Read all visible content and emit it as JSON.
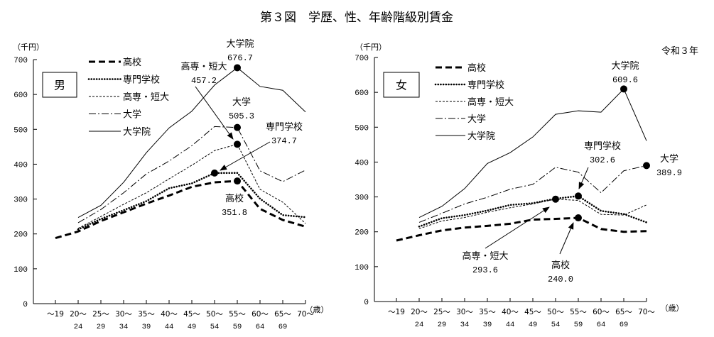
{
  "title": "第３図　学歴、性、年齢階級別賃金",
  "note": "令和３年",
  "chart_data": [
    {
      "type": "line",
      "panel": "男",
      "ylabel": "（千円）",
      "xlabel": "（歳）",
      "ylim": [
        0,
        700
      ],
      "yticks": [
        0,
        100,
        200,
        300,
        400,
        500,
        600,
        700
      ],
      "categories": [
        [
          "～19",
          ""
        ],
        [
          "20～",
          "24"
        ],
        [
          "25～",
          "29"
        ],
        [
          "30～",
          "34"
        ],
        [
          "35～",
          "39"
        ],
        [
          "40～",
          "44"
        ],
        [
          "45～",
          "49"
        ],
        [
          "50～",
          "54"
        ],
        [
          "55～",
          "59"
        ],
        [
          "60～",
          "64"
        ],
        [
          "65～",
          "69"
        ],
        [
          "70～",
          ""
        ]
      ],
      "series": [
        {
          "name": "高校",
          "values": [
            188,
            207,
            237,
            262,
            287,
            310,
            335,
            348,
            351.8,
            272,
            240,
            221
          ]
        },
        {
          "name": "専門学校",
          "values": [
            null,
            213,
            243,
            268,
            294,
            331,
            345,
            374.7,
            375,
            301,
            254,
            248
          ]
        },
        {
          "name": "高専・短大",
          "values": [
            null,
            216,
            250,
            285,
            318,
            358,
            397,
            439,
            457.2,
            328,
            291,
            230
          ]
        },
        {
          "name": "大学",
          "values": [
            null,
            232,
            270,
            318,
            372,
            409,
            453,
            508,
            505.3,
            381,
            350,
            383
          ]
        },
        {
          "name": "大学院",
          "values": [
            null,
            247,
            282,
            348,
            433,
            504,
            552,
            627,
            676.7,
            623,
            612,
            550
          ]
        }
      ],
      "annotations": [
        {
          "series": "大学院",
          "label": "大学院",
          "value": "676.7",
          "index": 8
        },
        {
          "series": "高専・短大",
          "label": "高専・短大",
          "value": "457.2",
          "index": 8
        },
        {
          "series": "大学",
          "label": "大学",
          "value": "505.3",
          "index": 8
        },
        {
          "series": "専門学校",
          "label": "専門学校",
          "value": "374.7",
          "index": 7
        },
        {
          "series": "高校",
          "label": "高校",
          "value": "351.8",
          "index": 8
        }
      ]
    },
    {
      "type": "line",
      "panel": "女",
      "ylabel": "（千円）",
      "xlabel": "（歳）",
      "ylim": [
        0,
        700
      ],
      "yticks": [
        0,
        100,
        200,
        300,
        400,
        500,
        600,
        700
      ],
      "categories": [
        [
          "～19",
          ""
        ],
        [
          "20～",
          "24"
        ],
        [
          "25～",
          "29"
        ],
        [
          "30～",
          "34"
        ],
        [
          "35～",
          "39"
        ],
        [
          "40～",
          "44"
        ],
        [
          "45～",
          "49"
        ],
        [
          "50～",
          "54"
        ],
        [
          "55～",
          "59"
        ],
        [
          "60～",
          "64"
        ],
        [
          "65～",
          "69"
        ],
        [
          "70～",
          ""
        ]
      ],
      "series": [
        {
          "name": "高校",
          "values": [
            175,
            190,
            204,
            212,
            217,
            223,
            235,
            237,
            240.0,
            208,
            200,
            202
          ]
        },
        {
          "name": "専門学校",
          "values": [
            null,
            215,
            239,
            248,
            261,
            277,
            282,
            295,
            302.6,
            260,
            251,
            227
          ]
        },
        {
          "name": "高専・短大",
          "values": [
            null,
            209,
            231,
            241,
            256,
            269,
            280,
            293.6,
            290,
            250,
            248,
            277
          ]
        },
        {
          "name": "大学",
          "values": [
            null,
            227,
            253,
            280,
            299,
            322,
            336,
            385,
            371,
            312,
            375,
            389.9
          ]
        },
        {
          "name": "大学院",
          "values": [
            null,
            241,
            273,
            324,
            396,
            427,
            472,
            537,
            547,
            543,
            609.6,
            461
          ]
        }
      ],
      "annotations": [
        {
          "series": "大学院",
          "label": "大学院",
          "value": "609.6",
          "index": 10
        },
        {
          "series": "専門学校",
          "label": "専門学校",
          "value": "302.6",
          "index": 8
        },
        {
          "series": "大学",
          "label": "大学",
          "value": "389.9",
          "index": 11
        },
        {
          "series": "高専・短大",
          "label": "高専・短大",
          "value": "293.6",
          "index": 7
        },
        {
          "series": "高校",
          "label": "高校",
          "value": "240.0",
          "index": 8
        }
      ]
    }
  ]
}
